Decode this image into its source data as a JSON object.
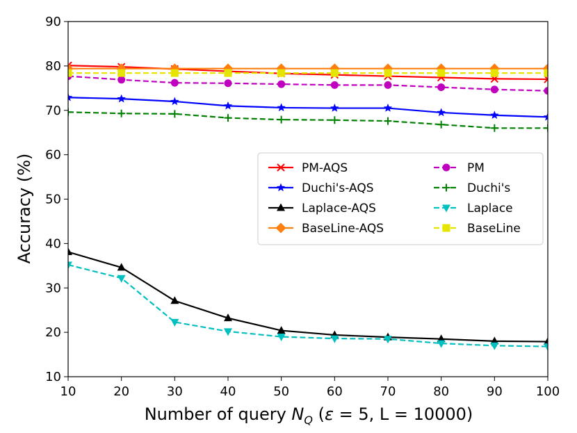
{
  "chart_data": {
    "type": "line",
    "xlabel": "Number of query N_Q (ε = 5, L = 10000)",
    "xlabel_parts": {
      "prefix": "Number of query ",
      "var": "N",
      "sub": "Q",
      "mid": " (",
      "eps": "ε",
      "suffix": " = 5, L = 10000)"
    },
    "ylabel": "Accuracy (%)",
    "xlim": [
      10,
      100
    ],
    "ylim": [
      10,
      90
    ],
    "x": [
      10,
      20,
      30,
      40,
      50,
      60,
      70,
      80,
      90,
      100
    ],
    "xticks": [
      10,
      20,
      30,
      40,
      50,
      60,
      70,
      80,
      90,
      100
    ],
    "yticks": [
      10,
      20,
      30,
      40,
      50,
      60,
      70,
      80,
      90
    ],
    "grid": false,
    "legend_position": "center-right",
    "series": [
      {
        "name": "PM-AQS",
        "color": "#ff0000",
        "dash": "solid",
        "marker": "x",
        "values": [
          80.1,
          79.8,
          79.3,
          78.8,
          78.3,
          78.0,
          77.7,
          77.4,
          77.1,
          77.0
        ]
      },
      {
        "name": "PM",
        "color": "#bf00bf",
        "dash": "dashed",
        "marker": "circle",
        "values": [
          77.7,
          76.9,
          76.2,
          76.1,
          75.9,
          75.7,
          75.7,
          75.2,
          74.7,
          74.4
        ]
      },
      {
        "name": "Duchi's-AQS",
        "color": "#0000ff",
        "dash": "solid",
        "marker": "star",
        "values": [
          72.9,
          72.6,
          72.0,
          71.0,
          70.6,
          70.5,
          70.5,
          69.5,
          68.9,
          68.5
        ]
      },
      {
        "name": "Duchi's",
        "color": "#008000",
        "dash": "dashed",
        "marker": "plus",
        "values": [
          69.6,
          69.3,
          69.2,
          68.3,
          67.9,
          67.8,
          67.6,
          66.8,
          66.0,
          66.0
        ]
      },
      {
        "name": "Laplace-AQS",
        "color": "#000000",
        "dash": "solid",
        "marker": "triangle-up",
        "values": [
          38.1,
          34.6,
          27.1,
          23.2,
          20.4,
          19.4,
          18.9,
          18.5,
          18.0,
          17.9
        ]
      },
      {
        "name": "Laplace",
        "color": "#00bfbf",
        "dash": "dashed",
        "marker": "triangle-down",
        "values": [
          35.2,
          32.2,
          22.3,
          20.2,
          19.0,
          18.6,
          18.5,
          17.5,
          17.0,
          16.8
        ]
      },
      {
        "name": "BaseLine-AQS",
        "color": "#ff7f0e",
        "dash": "solid",
        "marker": "diamond",
        "values": [
          79.4,
          79.4,
          79.4,
          79.4,
          79.4,
          79.4,
          79.4,
          79.4,
          79.4,
          79.4
        ]
      },
      {
        "name": "BaseLine",
        "color": "#e5e500",
        "dash": "dashed",
        "marker": "square",
        "values": [
          78.4,
          78.4,
          78.4,
          78.4,
          78.4,
          78.4,
          78.4,
          78.4,
          78.4,
          78.4
        ]
      }
    ],
    "legend_order": [
      "PM-AQS",
      "PM",
      "Duchi's-AQS",
      "Duchi's",
      "Laplace-AQS",
      "Laplace",
      "BaseLine-AQS",
      "BaseLine"
    ]
  }
}
